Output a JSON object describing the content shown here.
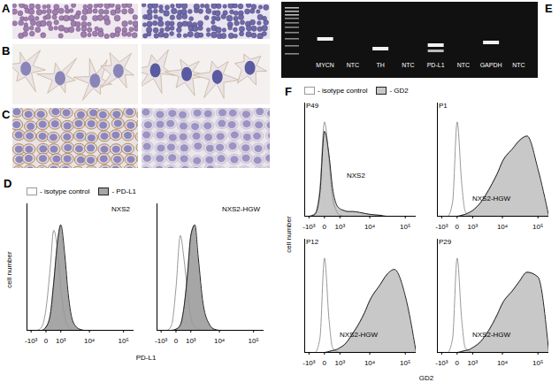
{
  "panel_labels": [
    "A",
    "B",
    "C",
    "D",
    "E",
    "F"
  ],
  "gel": {
    "lanes": [
      "MYCN",
      "NTC",
      "TH",
      "NTC",
      "PD-L1",
      "NTC",
      "GAPDH",
      "NTC"
    ]
  },
  "chart_data": [
    {
      "type": "area",
      "panel": "D",
      "title": "NXS2",
      "ylabel": "cell number",
      "legend": "top-left",
      "log": "x",
      "xlim": [
        -1500,
        200000
      ],
      "xticks": [
        {
          "value": -1000,
          "label": "-10³"
        },
        0,
        {
          "value": 1000,
          "label": "10³"
        },
        {
          "value": 10000,
          "label": "10⁴"
        },
        {
          "value": 100000,
          "label": "10⁵"
        }
      ],
      "ylim": [
        0,
        120
      ],
      "tick_labels": "x",
      "x": [
        -1500,
        -1000,
        -500,
        -200,
        0,
        200,
        400,
        700,
        1000,
        1500,
        2000,
        3000,
        5000,
        7000,
        10000,
        20000,
        30000,
        50000,
        100000,
        200000
      ],
      "series": [
        {
          "name": "- isotype control",
          "color": "#ffffff",
          "values": [
            0,
            0,
            0,
            3,
            20,
            60,
            95,
            75,
            40,
            12,
            3,
            0,
            0,
            0,
            0,
            0,
            0,
            0,
            0,
            0
          ]
        },
        {
          "name": "- PD-L1",
          "color": "#a6a6a6",
          "values": [
            0,
            0,
            0,
            0,
            3,
            15,
            45,
            85,
            100,
            70,
            35,
            8,
            1,
            0,
            0,
            0,
            0,
            0,
            0,
            0
          ]
        }
      ]
    },
    {
      "type": "area",
      "panel": "D",
      "title": "NXS2-HGW",
      "xlabel": "PD-L1",
      "log": "x",
      "xlim": [
        -1500,
        200000
      ],
      "xticks": [
        {
          "value": -1000,
          "label": "-10³"
        },
        0,
        {
          "value": 1000,
          "label": "10³"
        },
        {
          "value": 10000,
          "label": "10⁴"
        },
        {
          "value": 100000,
          "label": "10⁵"
        }
      ],
      "ylim": [
        0,
        120
      ],
      "tick_labels": "x",
      "x": [
        -1500,
        -1000,
        -500,
        -200,
        0,
        200,
        400,
        700,
        1000,
        1500,
        2000,
        3000,
        5000,
        7000,
        10000,
        20000,
        30000,
        50000,
        100000,
        200000
      ],
      "series": [
        {
          "name": "- isotype control",
          "color": "#ffffff",
          "values": [
            0,
            0,
            0,
            5,
            40,
            90,
            70,
            35,
            12,
            3,
            1,
            0,
            0,
            0,
            0,
            0,
            0,
            0,
            0,
            0
          ]
        },
        {
          "name": "- PD-L1",
          "color": "#a6a6a6",
          "values": [
            0,
            0,
            0,
            0,
            1,
            5,
            20,
            55,
            90,
            100,
            70,
            25,
            5,
            1,
            0,
            0,
            0,
            0,
            0,
            0
          ]
        }
      ]
    },
    {
      "type": "area",
      "panel": "F",
      "title": "NXS2",
      "annotations": [
        "P49"
      ],
      "ylabel": "cell number",
      "legend": "top-left",
      "log": "x",
      "xlim": [
        -1500,
        200000
      ],
      "xticks": [
        {
          "value": -1000,
          "label": "-10³"
        },
        0,
        {
          "value": 1000,
          "label": "10³"
        },
        {
          "value": 10000,
          "label": "10⁴"
        },
        {
          "value": 100000,
          "label": "10⁵"
        }
      ],
      "ylim": [
        0,
        120
      ],
      "tick_labels": "x",
      "x": [
        -1500,
        -1000,
        -500,
        -200,
        0,
        200,
        400,
        700,
        1000,
        1500,
        2000,
        3000,
        5000,
        7000,
        10000,
        20000,
        30000,
        50000,
        100000,
        200000
      ],
      "series": [
        {
          "name": "- isotype control",
          "color": "#ffffff",
          "values": [
            0,
            0,
            3,
            30,
            100,
            60,
            20,
            5,
            1,
            0,
            0,
            0,
            0,
            0,
            0,
            0,
            0,
            0,
            0,
            0
          ]
        },
        {
          "name": "- GD2",
          "color": "#c8c8c8",
          "values": [
            0,
            0,
            2,
            25,
            90,
            65,
            30,
            12,
            8,
            6,
            5,
            5,
            4,
            3,
            2,
            1,
            0,
            0,
            0,
            0
          ]
        }
      ]
    },
    {
      "type": "area",
      "panel": "F",
      "title": "NXS2-HGW",
      "annotations": [
        "P1"
      ],
      "log": "x",
      "xlim": [
        -1500,
        200000
      ],
      "xticks": [
        {
          "value": -1000,
          "label": "-10³"
        },
        0,
        {
          "value": 1000,
          "label": "10³"
        },
        {
          "value": 10000,
          "label": "10⁴"
        },
        {
          "value": 100000,
          "label": "10⁵"
        }
      ],
      "ylim": [
        0,
        120
      ],
      "tick_labels": "x",
      "x": [
        -1500,
        -1000,
        -500,
        -200,
        0,
        200,
        400,
        700,
        1000,
        1500,
        2000,
        3000,
        5000,
        7000,
        10000,
        20000,
        30000,
        50000,
        100000,
        200000
      ],
      "series": [
        {
          "name": "- isotype control",
          "color": "#ffffff",
          "values": [
            0,
            0,
            0,
            15,
            100,
            35,
            5,
            1,
            0,
            0,
            0,
            0,
            0,
            0,
            0,
            0,
            0,
            0,
            0,
            0
          ]
        },
        {
          "name": "- GD2",
          "color": "#c8c8c8",
          "values": [
            0,
            0,
            0,
            0,
            0,
            1,
            2,
            4,
            6,
            10,
            14,
            22,
            35,
            45,
            58,
            72,
            80,
            85,
            50,
            0
          ]
        }
      ]
    },
    {
      "type": "area",
      "panel": "F",
      "title": "NXS2-HGW",
      "annotations": [
        "P12"
      ],
      "log": "x",
      "xlim": [
        -1500,
        200000
      ],
      "xticks": [
        {
          "value": -1000,
          "label": "-10³"
        },
        0,
        {
          "value": 1000,
          "label": "10³"
        },
        {
          "value": 10000,
          "label": "10⁴"
        },
        {
          "value": 100000,
          "label": "10⁵"
        }
      ],
      "ylim": [
        0,
        120
      ],
      "tick_labels": "x",
      "x": [
        -1500,
        -1000,
        -500,
        -200,
        0,
        200,
        400,
        700,
        1000,
        1500,
        2000,
        3000,
        5000,
        7000,
        10000,
        20000,
        30000,
        50000,
        100000,
        200000
      ],
      "series": [
        {
          "name": "- isotype control",
          "color": "#ffffff",
          "values": [
            0,
            0,
            0,
            15,
            100,
            35,
            5,
            1,
            0,
            0,
            0,
            0,
            0,
            0,
            0,
            0,
            0,
            0,
            0,
            0
          ]
        },
        {
          "name": "- GD2",
          "color": "#c8c8c8",
          "values": [
            0,
            0,
            0,
            0,
            0,
            1,
            2,
            3,
            5,
            8,
            12,
            20,
            32,
            42,
            55,
            72,
            82,
            88,
            60,
            0
          ]
        }
      ]
    },
    {
      "type": "area",
      "panel": "F",
      "title": "NXS2-HGW",
      "annotations": [
        "P29"
      ],
      "xlabel": "GD2",
      "log": "x",
      "xlim": [
        -1500,
        200000
      ],
      "xticks": [
        {
          "value": -1000,
          "label": "-10³"
        },
        0,
        {
          "value": 1000,
          "label": "10³"
        },
        {
          "value": 10000,
          "label": "10⁴"
        },
        {
          "value": 100000,
          "label": "10⁵"
        }
      ],
      "ylim": [
        0,
        120
      ],
      "tick_labels": "x",
      "x": [
        -1500,
        -1000,
        -500,
        -200,
        0,
        200,
        400,
        700,
        1000,
        1500,
        2000,
        3000,
        5000,
        7000,
        10000,
        20000,
        30000,
        50000,
        100000,
        200000
      ],
      "series": [
        {
          "name": "- isotype control",
          "color": "#ffffff",
          "values": [
            0,
            0,
            0,
            15,
            100,
            35,
            5,
            1,
            0,
            0,
            0,
            0,
            0,
            0,
            0,
            0,
            0,
            0,
            0,
            0
          ]
        },
        {
          "name": "- GD2",
          "color": "#c8c8c8",
          "values": [
            0,
            0,
            0,
            0,
            0,
            1,
            2,
            3,
            5,
            8,
            11,
            18,
            30,
            40,
            52,
            66,
            75,
            85,
            80,
            0
          ]
        }
      ]
    }
  ]
}
